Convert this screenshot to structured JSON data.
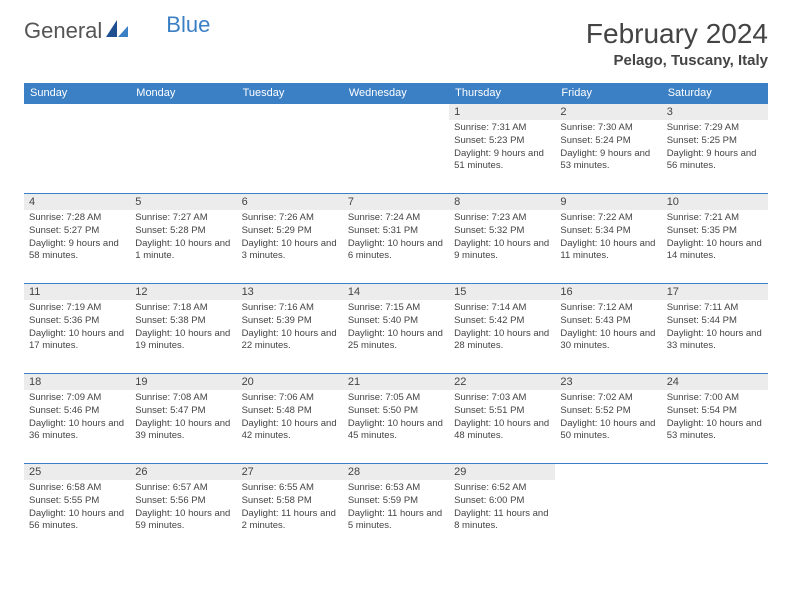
{
  "brand": {
    "part1": "General",
    "part2": "Blue"
  },
  "title": "February 2024",
  "location": "Pelago, Tuscany, Italy",
  "colors": {
    "accent": "#3b7fc4",
    "header_text": "#ffffff",
    "dayhead_bg": "#ececec",
    "text": "#444444",
    "background": "#ffffff"
  },
  "weekdays": [
    "Sunday",
    "Monday",
    "Tuesday",
    "Wednesday",
    "Thursday",
    "Friday",
    "Saturday"
  ],
  "weeks": [
    [
      null,
      null,
      null,
      null,
      {
        "n": "1",
        "sr": "Sunrise: 7:31 AM",
        "ss": "Sunset: 5:23 PM",
        "dl": "Daylight: 9 hours and 51 minutes."
      },
      {
        "n": "2",
        "sr": "Sunrise: 7:30 AM",
        "ss": "Sunset: 5:24 PM",
        "dl": "Daylight: 9 hours and 53 minutes."
      },
      {
        "n": "3",
        "sr": "Sunrise: 7:29 AM",
        "ss": "Sunset: 5:25 PM",
        "dl": "Daylight: 9 hours and 56 minutes."
      }
    ],
    [
      {
        "n": "4",
        "sr": "Sunrise: 7:28 AM",
        "ss": "Sunset: 5:27 PM",
        "dl": "Daylight: 9 hours and 58 minutes."
      },
      {
        "n": "5",
        "sr": "Sunrise: 7:27 AM",
        "ss": "Sunset: 5:28 PM",
        "dl": "Daylight: 10 hours and 1 minute."
      },
      {
        "n": "6",
        "sr": "Sunrise: 7:26 AM",
        "ss": "Sunset: 5:29 PM",
        "dl": "Daylight: 10 hours and 3 minutes."
      },
      {
        "n": "7",
        "sr": "Sunrise: 7:24 AM",
        "ss": "Sunset: 5:31 PM",
        "dl": "Daylight: 10 hours and 6 minutes."
      },
      {
        "n": "8",
        "sr": "Sunrise: 7:23 AM",
        "ss": "Sunset: 5:32 PM",
        "dl": "Daylight: 10 hours and 9 minutes."
      },
      {
        "n": "9",
        "sr": "Sunrise: 7:22 AM",
        "ss": "Sunset: 5:34 PM",
        "dl": "Daylight: 10 hours and 11 minutes."
      },
      {
        "n": "10",
        "sr": "Sunrise: 7:21 AM",
        "ss": "Sunset: 5:35 PM",
        "dl": "Daylight: 10 hours and 14 minutes."
      }
    ],
    [
      {
        "n": "11",
        "sr": "Sunrise: 7:19 AM",
        "ss": "Sunset: 5:36 PM",
        "dl": "Daylight: 10 hours and 17 minutes."
      },
      {
        "n": "12",
        "sr": "Sunrise: 7:18 AM",
        "ss": "Sunset: 5:38 PM",
        "dl": "Daylight: 10 hours and 19 minutes."
      },
      {
        "n": "13",
        "sr": "Sunrise: 7:16 AM",
        "ss": "Sunset: 5:39 PM",
        "dl": "Daylight: 10 hours and 22 minutes."
      },
      {
        "n": "14",
        "sr": "Sunrise: 7:15 AM",
        "ss": "Sunset: 5:40 PM",
        "dl": "Daylight: 10 hours and 25 minutes."
      },
      {
        "n": "15",
        "sr": "Sunrise: 7:14 AM",
        "ss": "Sunset: 5:42 PM",
        "dl": "Daylight: 10 hours and 28 minutes."
      },
      {
        "n": "16",
        "sr": "Sunrise: 7:12 AM",
        "ss": "Sunset: 5:43 PM",
        "dl": "Daylight: 10 hours and 30 minutes."
      },
      {
        "n": "17",
        "sr": "Sunrise: 7:11 AM",
        "ss": "Sunset: 5:44 PM",
        "dl": "Daylight: 10 hours and 33 minutes."
      }
    ],
    [
      {
        "n": "18",
        "sr": "Sunrise: 7:09 AM",
        "ss": "Sunset: 5:46 PM",
        "dl": "Daylight: 10 hours and 36 minutes."
      },
      {
        "n": "19",
        "sr": "Sunrise: 7:08 AM",
        "ss": "Sunset: 5:47 PM",
        "dl": "Daylight: 10 hours and 39 minutes."
      },
      {
        "n": "20",
        "sr": "Sunrise: 7:06 AM",
        "ss": "Sunset: 5:48 PM",
        "dl": "Daylight: 10 hours and 42 minutes."
      },
      {
        "n": "21",
        "sr": "Sunrise: 7:05 AM",
        "ss": "Sunset: 5:50 PM",
        "dl": "Daylight: 10 hours and 45 minutes."
      },
      {
        "n": "22",
        "sr": "Sunrise: 7:03 AM",
        "ss": "Sunset: 5:51 PM",
        "dl": "Daylight: 10 hours and 48 minutes."
      },
      {
        "n": "23",
        "sr": "Sunrise: 7:02 AM",
        "ss": "Sunset: 5:52 PM",
        "dl": "Daylight: 10 hours and 50 minutes."
      },
      {
        "n": "24",
        "sr": "Sunrise: 7:00 AM",
        "ss": "Sunset: 5:54 PM",
        "dl": "Daylight: 10 hours and 53 minutes."
      }
    ],
    [
      {
        "n": "25",
        "sr": "Sunrise: 6:58 AM",
        "ss": "Sunset: 5:55 PM",
        "dl": "Daylight: 10 hours and 56 minutes."
      },
      {
        "n": "26",
        "sr": "Sunrise: 6:57 AM",
        "ss": "Sunset: 5:56 PM",
        "dl": "Daylight: 10 hours and 59 minutes."
      },
      {
        "n": "27",
        "sr": "Sunrise: 6:55 AM",
        "ss": "Sunset: 5:58 PM",
        "dl": "Daylight: 11 hours and 2 minutes."
      },
      {
        "n": "28",
        "sr": "Sunrise: 6:53 AM",
        "ss": "Sunset: 5:59 PM",
        "dl": "Daylight: 11 hours and 5 minutes."
      },
      {
        "n": "29",
        "sr": "Sunrise: 6:52 AM",
        "ss": "Sunset: 6:00 PM",
        "dl": "Daylight: 11 hours and 8 minutes."
      },
      null,
      null
    ]
  ]
}
